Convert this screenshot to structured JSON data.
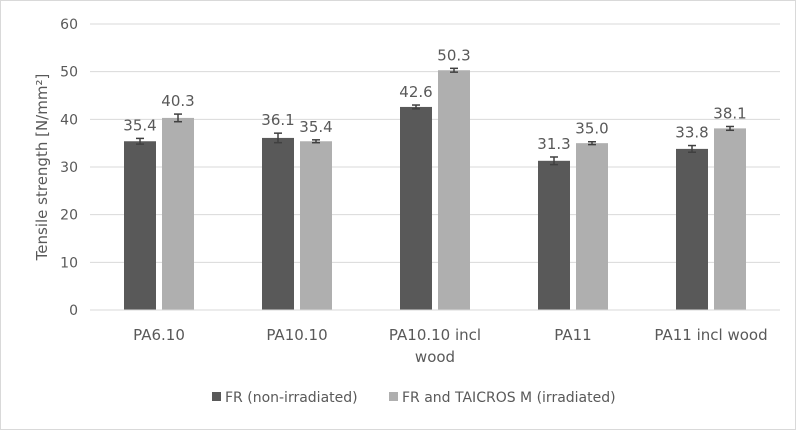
{
  "chart_data": {
    "type": "bar",
    "title": "",
    "xlabel": "",
    "ylabel": "Tensile strength [N/mm²]",
    "ylim": [
      0,
      60
    ],
    "yticks": [
      0,
      10,
      20,
      30,
      40,
      50,
      60
    ],
    "grid": true,
    "legend_position": "bottom",
    "categories": [
      "PA6.10",
      "PA10.10",
      "PA10.10 incl wood",
      "PA11",
      "PA11 incl wood"
    ],
    "series": [
      {
        "name": "FR (non-irradiated)",
        "color": "#595959",
        "values": [
          35.4,
          36.1,
          42.6,
          31.3,
          33.8
        ],
        "errors": [
          0.6,
          1.0,
          0.4,
          0.8,
          0.7
        ],
        "labels": [
          "35.4",
          "36.1",
          "42.6",
          "31.3",
          "33.8"
        ]
      },
      {
        "name": "FR and TAICROS M (irradiated)",
        "color": "#afafaf",
        "values": [
          40.3,
          35.4,
          50.3,
          35.0,
          38.1
        ],
        "errors": [
          0.8,
          0.3,
          0.4,
          0.3,
          0.4
        ],
        "labels": [
          "40.3",
          "35.4",
          "50.3",
          "35.0",
          "38.1"
        ]
      }
    ]
  }
}
